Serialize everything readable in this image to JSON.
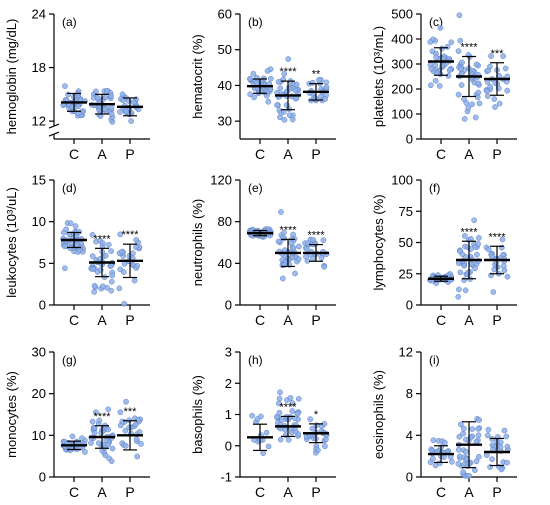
{
  "chart_data": [
    {
      "type": "scatter",
      "panel_label": "(a)",
      "ylabel": "hemoglobin (mg/dL)",
      "categories": [
        "C",
        "A",
        "P"
      ],
      "axis_break": true,
      "ylim": [
        10,
        24
      ],
      "yticks": [
        {
          "v": 12,
          "label": "12"
        },
        {
          "v": 18,
          "label": "18"
        },
        {
          "v": 24,
          "label": "24"
        }
      ],
      "groups": [
        {
          "name": "C",
          "mean": 14.1,
          "sd": 1.0,
          "n": 40,
          "spread": 0.9,
          "significance": ""
        },
        {
          "name": "A",
          "mean": 13.9,
          "sd": 1.1,
          "n": 40,
          "spread": 1.0,
          "significance": ""
        },
        {
          "name": "P",
          "mean": 13.6,
          "sd": 1.0,
          "n": 25,
          "spread": 0.9,
          "significance": ""
        }
      ]
    },
    {
      "type": "scatter",
      "panel_label": "(b)",
      "ylabel": "hematocrit (%)",
      "categories": [
        "C",
        "A",
        "P"
      ],
      "ylim": [
        25,
        60
      ],
      "yticks": [
        {
          "v": 30,
          "label": "30"
        },
        {
          "v": 40,
          "label": "40"
        },
        {
          "v": 50,
          "label": "50"
        },
        {
          "v": 60,
          "label": "60"
        }
      ],
      "groups": [
        {
          "name": "C",
          "mean": 39.8,
          "sd": 2.0,
          "n": 40,
          "spread": 1.8,
          "significance": ""
        },
        {
          "name": "A",
          "mean": 37.2,
          "sd": 4.0,
          "n": 40,
          "spread": 4.0,
          "significance": "****"
        },
        {
          "name": "P",
          "mean": 38.2,
          "sd": 2.3,
          "n": 25,
          "spread": 2.2,
          "significance": "**"
        }
      ]
    },
    {
      "type": "scatter",
      "panel_label": "(c)",
      "ylabel": "platelets (10³/mL)",
      "categories": [
        "C",
        "A",
        "P"
      ],
      "ylim": [
        0,
        500
      ],
      "yticks": [
        {
          "v": 0,
          "label": "0"
        },
        {
          "v": 100,
          "label": "100"
        },
        {
          "v": 200,
          "label": "200"
        },
        {
          "v": 300,
          "label": "300"
        },
        {
          "v": 400,
          "label": "400"
        },
        {
          "v": 500,
          "label": "500"
        }
      ],
      "groups": [
        {
          "name": "C",
          "mean": 310,
          "sd": 55,
          "n": 40,
          "spread": 45,
          "significance": ""
        },
        {
          "name": "A",
          "mean": 250,
          "sd": 80,
          "n": 40,
          "spread": 70,
          "significance": "****"
        },
        {
          "name": "P",
          "mean": 240,
          "sd": 65,
          "n": 25,
          "spread": 55,
          "significance": "***"
        }
      ]
    },
    {
      "type": "scatter",
      "panel_label": "(d)",
      "ylabel": "leukocytes (10³/uL)",
      "categories": [
        "C",
        "A",
        "P"
      ],
      "ylim": [
        0,
        15
      ],
      "yticks": [
        {
          "v": 0,
          "label": "0"
        },
        {
          "v": 5,
          "label": "5"
        },
        {
          "v": 10,
          "label": "10"
        },
        {
          "v": 15,
          "label": "15"
        }
      ],
      "groups": [
        {
          "name": "C",
          "mean": 7.8,
          "sd": 0.9,
          "n": 40,
          "spread": 1.0,
          "significance": ""
        },
        {
          "name": "A",
          "mean": 5.1,
          "sd": 1.7,
          "n": 40,
          "spread": 1.6,
          "significance": "****"
        },
        {
          "name": "P",
          "mean": 5.3,
          "sd": 2.0,
          "n": 25,
          "spread": 1.8,
          "significance": "****"
        }
      ]
    },
    {
      "type": "scatter",
      "panel_label": "(e)",
      "ylabel": "neutrophils (%)",
      "categories": [
        "C",
        "A",
        "P"
      ],
      "ylim": [
        0,
        120
      ],
      "yticks": [
        {
          "v": 0,
          "label": "0"
        },
        {
          "v": 40,
          "label": "40"
        },
        {
          "v": 80,
          "label": "80"
        },
        {
          "v": 120,
          "label": "120"
        }
      ],
      "groups": [
        {
          "name": "C",
          "mean": 69,
          "sd": 2.5,
          "n": 40,
          "spread": 2.0,
          "significance": ""
        },
        {
          "name": "A",
          "mean": 50,
          "sd": 13,
          "n": 40,
          "spread": 12,
          "significance": "****"
        },
        {
          "name": "P",
          "mean": 50,
          "sd": 8,
          "n": 25,
          "spread": 8,
          "significance": "****"
        }
      ]
    },
    {
      "type": "scatter",
      "panel_label": "(f)",
      "ylabel": "lymphocytes (%)",
      "categories": [
        "C",
        "A",
        "P"
      ],
      "ylim": [
        0,
        100
      ],
      "yticks": [
        {
          "v": 0,
          "label": "0"
        },
        {
          "v": 25,
          "label": "25"
        },
        {
          "v": 50,
          "label": "50"
        },
        {
          "v": 75,
          "label": "75"
        },
        {
          "v": 100,
          "label": "100"
        }
      ],
      "groups": [
        {
          "name": "C",
          "mean": 21,
          "sd": 2,
          "n": 40,
          "spread": 1.8,
          "significance": ""
        },
        {
          "name": "A",
          "mean": 36,
          "sd": 15,
          "n": 40,
          "spread": 13,
          "significance": "****"
        },
        {
          "name": "P",
          "mean": 36,
          "sd": 11,
          "n": 25,
          "spread": 9,
          "significance": "****"
        }
      ]
    },
    {
      "type": "scatter",
      "panel_label": "(g)",
      "ylabel": "monocytes (%)",
      "categories": [
        "C",
        "A",
        "P"
      ],
      "ylim": [
        0,
        30
      ],
      "yticks": [
        {
          "v": 0,
          "label": "0"
        },
        {
          "v": 10,
          "label": "10"
        },
        {
          "v": 20,
          "label": "20"
        },
        {
          "v": 30,
          "label": "30"
        }
      ],
      "groups": [
        {
          "name": "C",
          "mean": 7.6,
          "sd": 1.0,
          "n": 40,
          "spread": 0.9,
          "significance": ""
        },
        {
          "name": "A",
          "mean": 9.6,
          "sd": 2.7,
          "n": 40,
          "spread": 2.5,
          "significance": "****"
        },
        {
          "name": "P",
          "mean": 10.0,
          "sd": 3.5,
          "n": 25,
          "spread": 3.0,
          "significance": "***"
        }
      ]
    },
    {
      "type": "scatter",
      "panel_label": "(h)",
      "ylabel": "basophils (%)",
      "categories": [
        "C",
        "A",
        "P"
      ],
      "ylim": [
        -1,
        3
      ],
      "yticks": [
        {
          "v": -1,
          "label": "-1"
        },
        {
          "v": 0,
          "label": "0"
        },
        {
          "v": 1,
          "label": "1"
        },
        {
          "v": 2,
          "label": "2"
        },
        {
          "v": 3,
          "label": "3"
        }
      ],
      "groups": [
        {
          "name": "C",
          "mean": 0.27,
          "sd": 0.42,
          "n": 12,
          "spread": 0.4,
          "significance": ""
        },
        {
          "name": "A",
          "mean": 0.62,
          "sd": 0.32,
          "n": 40,
          "spread": 0.45,
          "significance": "****"
        },
        {
          "name": "P",
          "mean": 0.4,
          "sd": 0.3,
          "n": 25,
          "spread": 0.3,
          "significance": "*"
        }
      ]
    },
    {
      "type": "scatter",
      "panel_label": "(i)",
      "ylabel": "eosinophils (%)",
      "categories": [
        "C",
        "A",
        "P"
      ],
      "ylim": [
        0,
        12
      ],
      "yticks": [
        {
          "v": 0,
          "label": "0"
        },
        {
          "v": 4,
          "label": "4"
        },
        {
          "v": 8,
          "label": "8"
        },
        {
          "v": 12,
          "label": "12"
        }
      ],
      "groups": [
        {
          "name": "C",
          "mean": 2.2,
          "sd": 0.8,
          "n": 25,
          "spread": 0.8,
          "significance": ""
        },
        {
          "name": "A",
          "mean": 3.1,
          "sd": 2.2,
          "n": 40,
          "spread": 2.0,
          "significance": ""
        },
        {
          "name": "P",
          "mean": 2.4,
          "sd": 1.3,
          "n": 25,
          "spread": 1.2,
          "significance": ""
        }
      ]
    }
  ],
  "style": {
    "dot_fill": "#8fb0e6",
    "dot_stroke": "#5a7fc8",
    "axis_color": "#000000"
  }
}
